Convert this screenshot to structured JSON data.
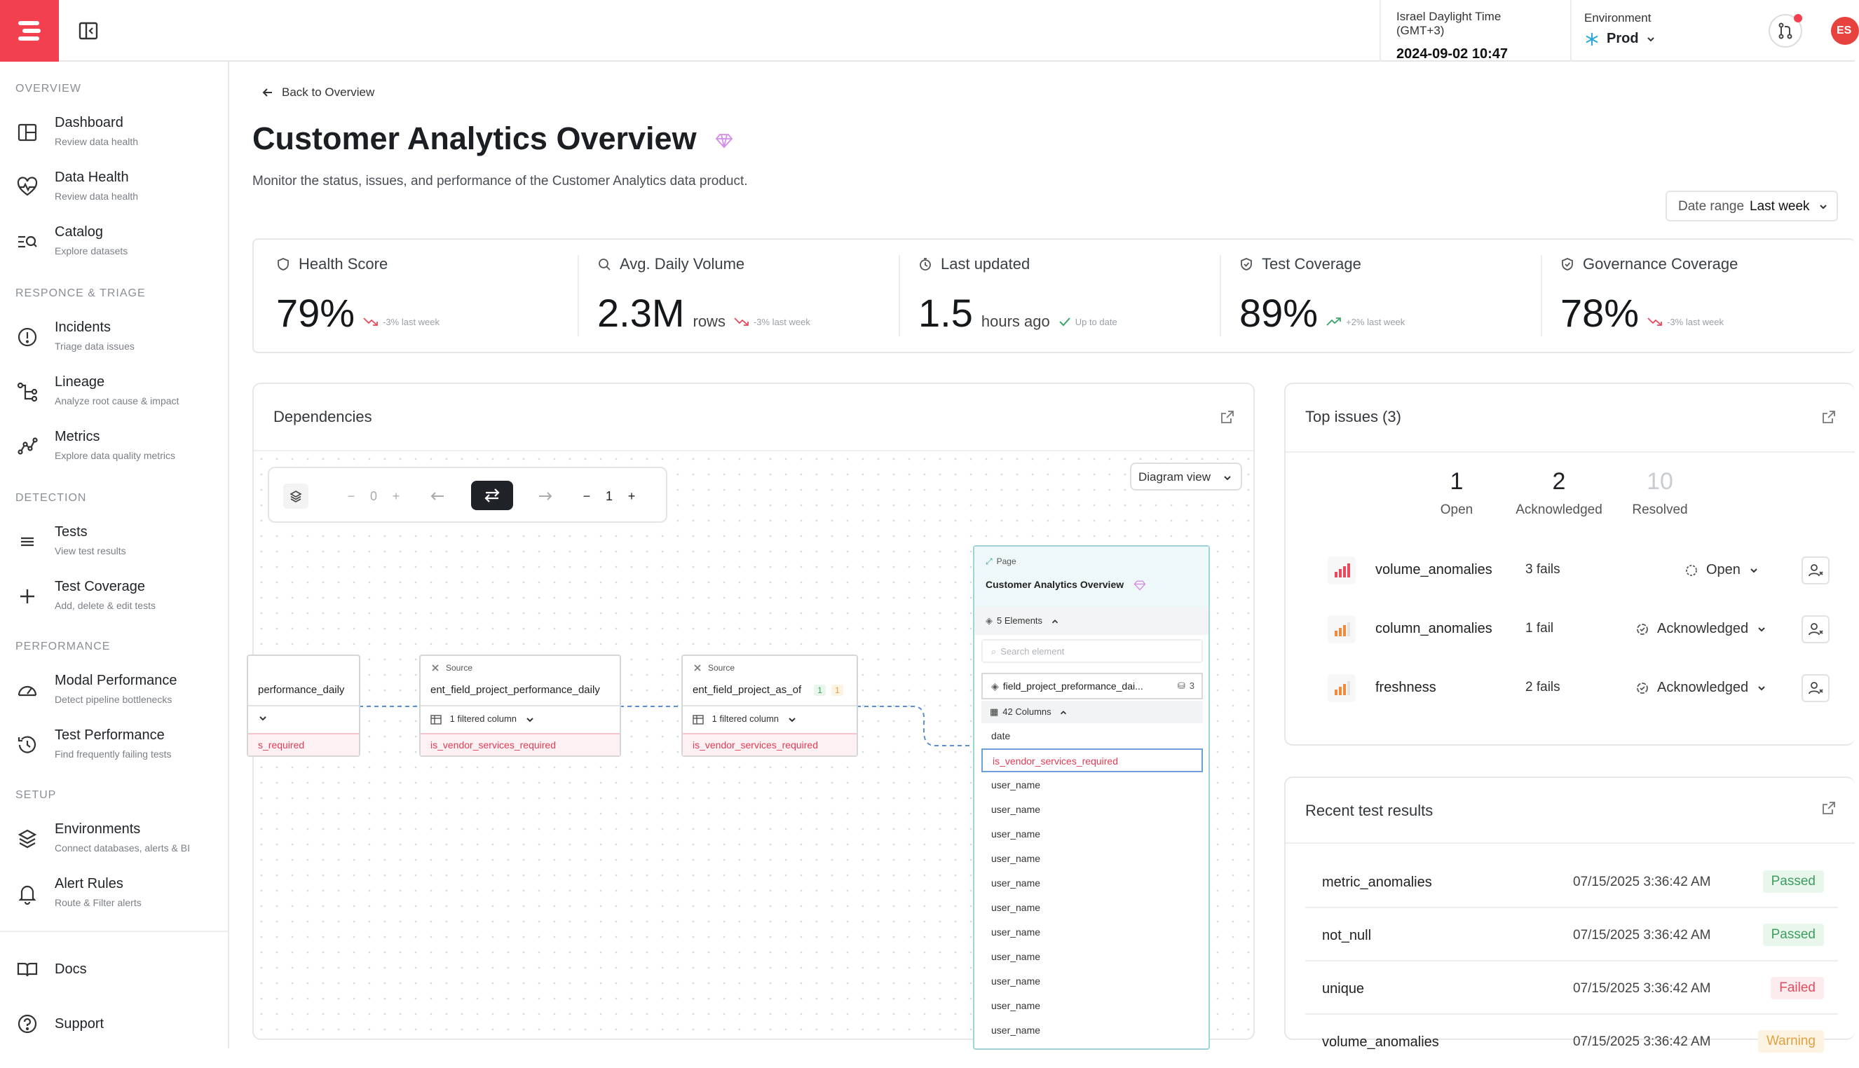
{
  "topbar": {
    "timezone_label": "Israel Daylight Time (GMT+3)",
    "datetime": "2024-09-02 10:47",
    "environment_label": "Environment",
    "environment_value": "Prod",
    "avatar_initials": "ES",
    "brand_color": "#f2404f"
  },
  "sidebar": {
    "sections": {
      "overview": "OVERVIEW",
      "response": "RESPONCE & TRIAGE",
      "detection": "DETECTION",
      "performance": "PERFORMANCE",
      "setup": "SETUP"
    },
    "items": [
      {
        "title": "Dashboard",
        "subtitle": "Review data health",
        "icon": "dashboard-icon"
      },
      {
        "title": "Data Health",
        "subtitle": "Review data health",
        "icon": "heart-pulse-icon"
      },
      {
        "title": "Catalog",
        "subtitle": "Explore datasets",
        "icon": "catalog-search-icon"
      },
      {
        "title": "Incidents",
        "subtitle": "Triage data issues",
        "icon": "alert-circle-icon"
      },
      {
        "title": "Lineage",
        "subtitle": "Analyze root cause & impact",
        "icon": "lineage-icon"
      },
      {
        "title": "Metrics",
        "subtitle": "Explore data quality metrics",
        "icon": "metrics-icon"
      },
      {
        "title": "Tests",
        "subtitle": "View test results",
        "icon": "list-icon"
      },
      {
        "title": "Test Coverage",
        "subtitle": "Add, delete & edit tests",
        "icon": "plus-icon"
      },
      {
        "title": "Modal Performance",
        "subtitle": "Detect pipeline bottlenecks",
        "icon": "gauge-icon"
      },
      {
        "title": "Test Performance",
        "subtitle": "Find frequently failing tests",
        "icon": "history-icon"
      },
      {
        "title": "Environments",
        "subtitle": "Connect databases, alerts & BI",
        "icon": "layers-icon"
      },
      {
        "title": "Alert Rules",
        "subtitle": "Route & Filter alerts",
        "icon": "bell-icon"
      }
    ],
    "footer": [
      {
        "title": "Docs",
        "icon": "book-icon"
      },
      {
        "title": "Support",
        "icon": "help-circle-icon"
      }
    ]
  },
  "page": {
    "back_label": "Back to Overview",
    "title": "Customer Analytics Overview",
    "description": "Monitor the status, issues, and performance of the Customer Analytics data product.",
    "date_range_label": "Date range",
    "date_range_value": "Last week"
  },
  "kpis": [
    {
      "label": "Health Score",
      "value": "79%",
      "unit": "",
      "trend": "-3% last week",
      "trend_dir": "down",
      "icon": "heart-shield-icon"
    },
    {
      "label": "Avg. Daily Volume",
      "value": "2.3M",
      "unit": "rows",
      "trend": "-3% last week",
      "trend_dir": "down",
      "icon": "search-chart-icon"
    },
    {
      "label": "Last updated",
      "value": "1.5",
      "unit": "hours ago",
      "trend": "Up to date",
      "trend_dir": "ok",
      "icon": "clock-icon"
    },
    {
      "label": "Test Coverage",
      "value": "89%",
      "unit": "",
      "trend": "+2% last week",
      "trend_dir": "up",
      "icon": "shield-check-icon"
    },
    {
      "label": "Governance Coverage",
      "value": "78%",
      "unit": "",
      "trend": "-3% last week",
      "trend_dir": "down",
      "icon": "shield-check-icon"
    }
  ],
  "dependencies": {
    "title": "Dependencies",
    "toolbar": {
      "left_depth": "0",
      "right_depth": "1"
    },
    "view_select": "Diagram view",
    "nodes": [
      {
        "kind": "",
        "name": "performance_daily",
        "filter": "",
        "required": "s_required"
      },
      {
        "kind": "Source",
        "name": "ent_field_project_performance_daily",
        "filter": "1 filtered column",
        "required": "is_vendor_services_required"
      },
      {
        "kind": "Source",
        "name": "ent_field_project_as_of",
        "filter": "1 filtered column",
        "required": "is_vendor_services_required",
        "badge1": "1",
        "badge2": "1"
      }
    ],
    "page_panel": {
      "kind": "Page",
      "name": "Customer Analytics Overview",
      "elements": "5 Elements",
      "search_placeholder": "Search element",
      "field": "field_project_preformance_dai...",
      "field_count": "3",
      "columns": "42 Columns",
      "rows": [
        "date",
        "is_vendor_services_required",
        "user_name",
        "user_name",
        "user_name",
        "user_name",
        "user_name",
        "user_name",
        "user_name",
        "user_name",
        "user_name",
        "user_name",
        "user_name"
      ]
    }
  },
  "top_issues": {
    "title": "Top issues (3)",
    "counts": [
      {
        "value": "1",
        "label": "Open"
      },
      {
        "value": "2",
        "label": "Acknowledged"
      },
      {
        "value": "10",
        "label": "Resolved"
      }
    ],
    "rows": [
      {
        "name": "volume_anomalies",
        "fails": "3 fails",
        "status": "Open"
      },
      {
        "name": "column_anomalies",
        "fails": "1 fail",
        "status": "Acknowledged"
      },
      {
        "name": "freshness",
        "fails": "2 fails",
        "status": "Acknowledged"
      }
    ]
  },
  "recent_tests": {
    "title": "Recent test results",
    "rows": [
      {
        "name": "metric_anomalies",
        "time": "07/15/2025 3:36:42 AM",
        "status": "Passed"
      },
      {
        "name": "not_null",
        "time": "07/15/2025 3:36:42 AM",
        "status": "Passed"
      },
      {
        "name": "unique",
        "time": "07/15/2025 3:36:42 AM",
        "status": "Failed"
      },
      {
        "name": "volume_anomalies",
        "time": "07/15/2025 3:36:42 AM",
        "status": "Warning"
      }
    ]
  }
}
